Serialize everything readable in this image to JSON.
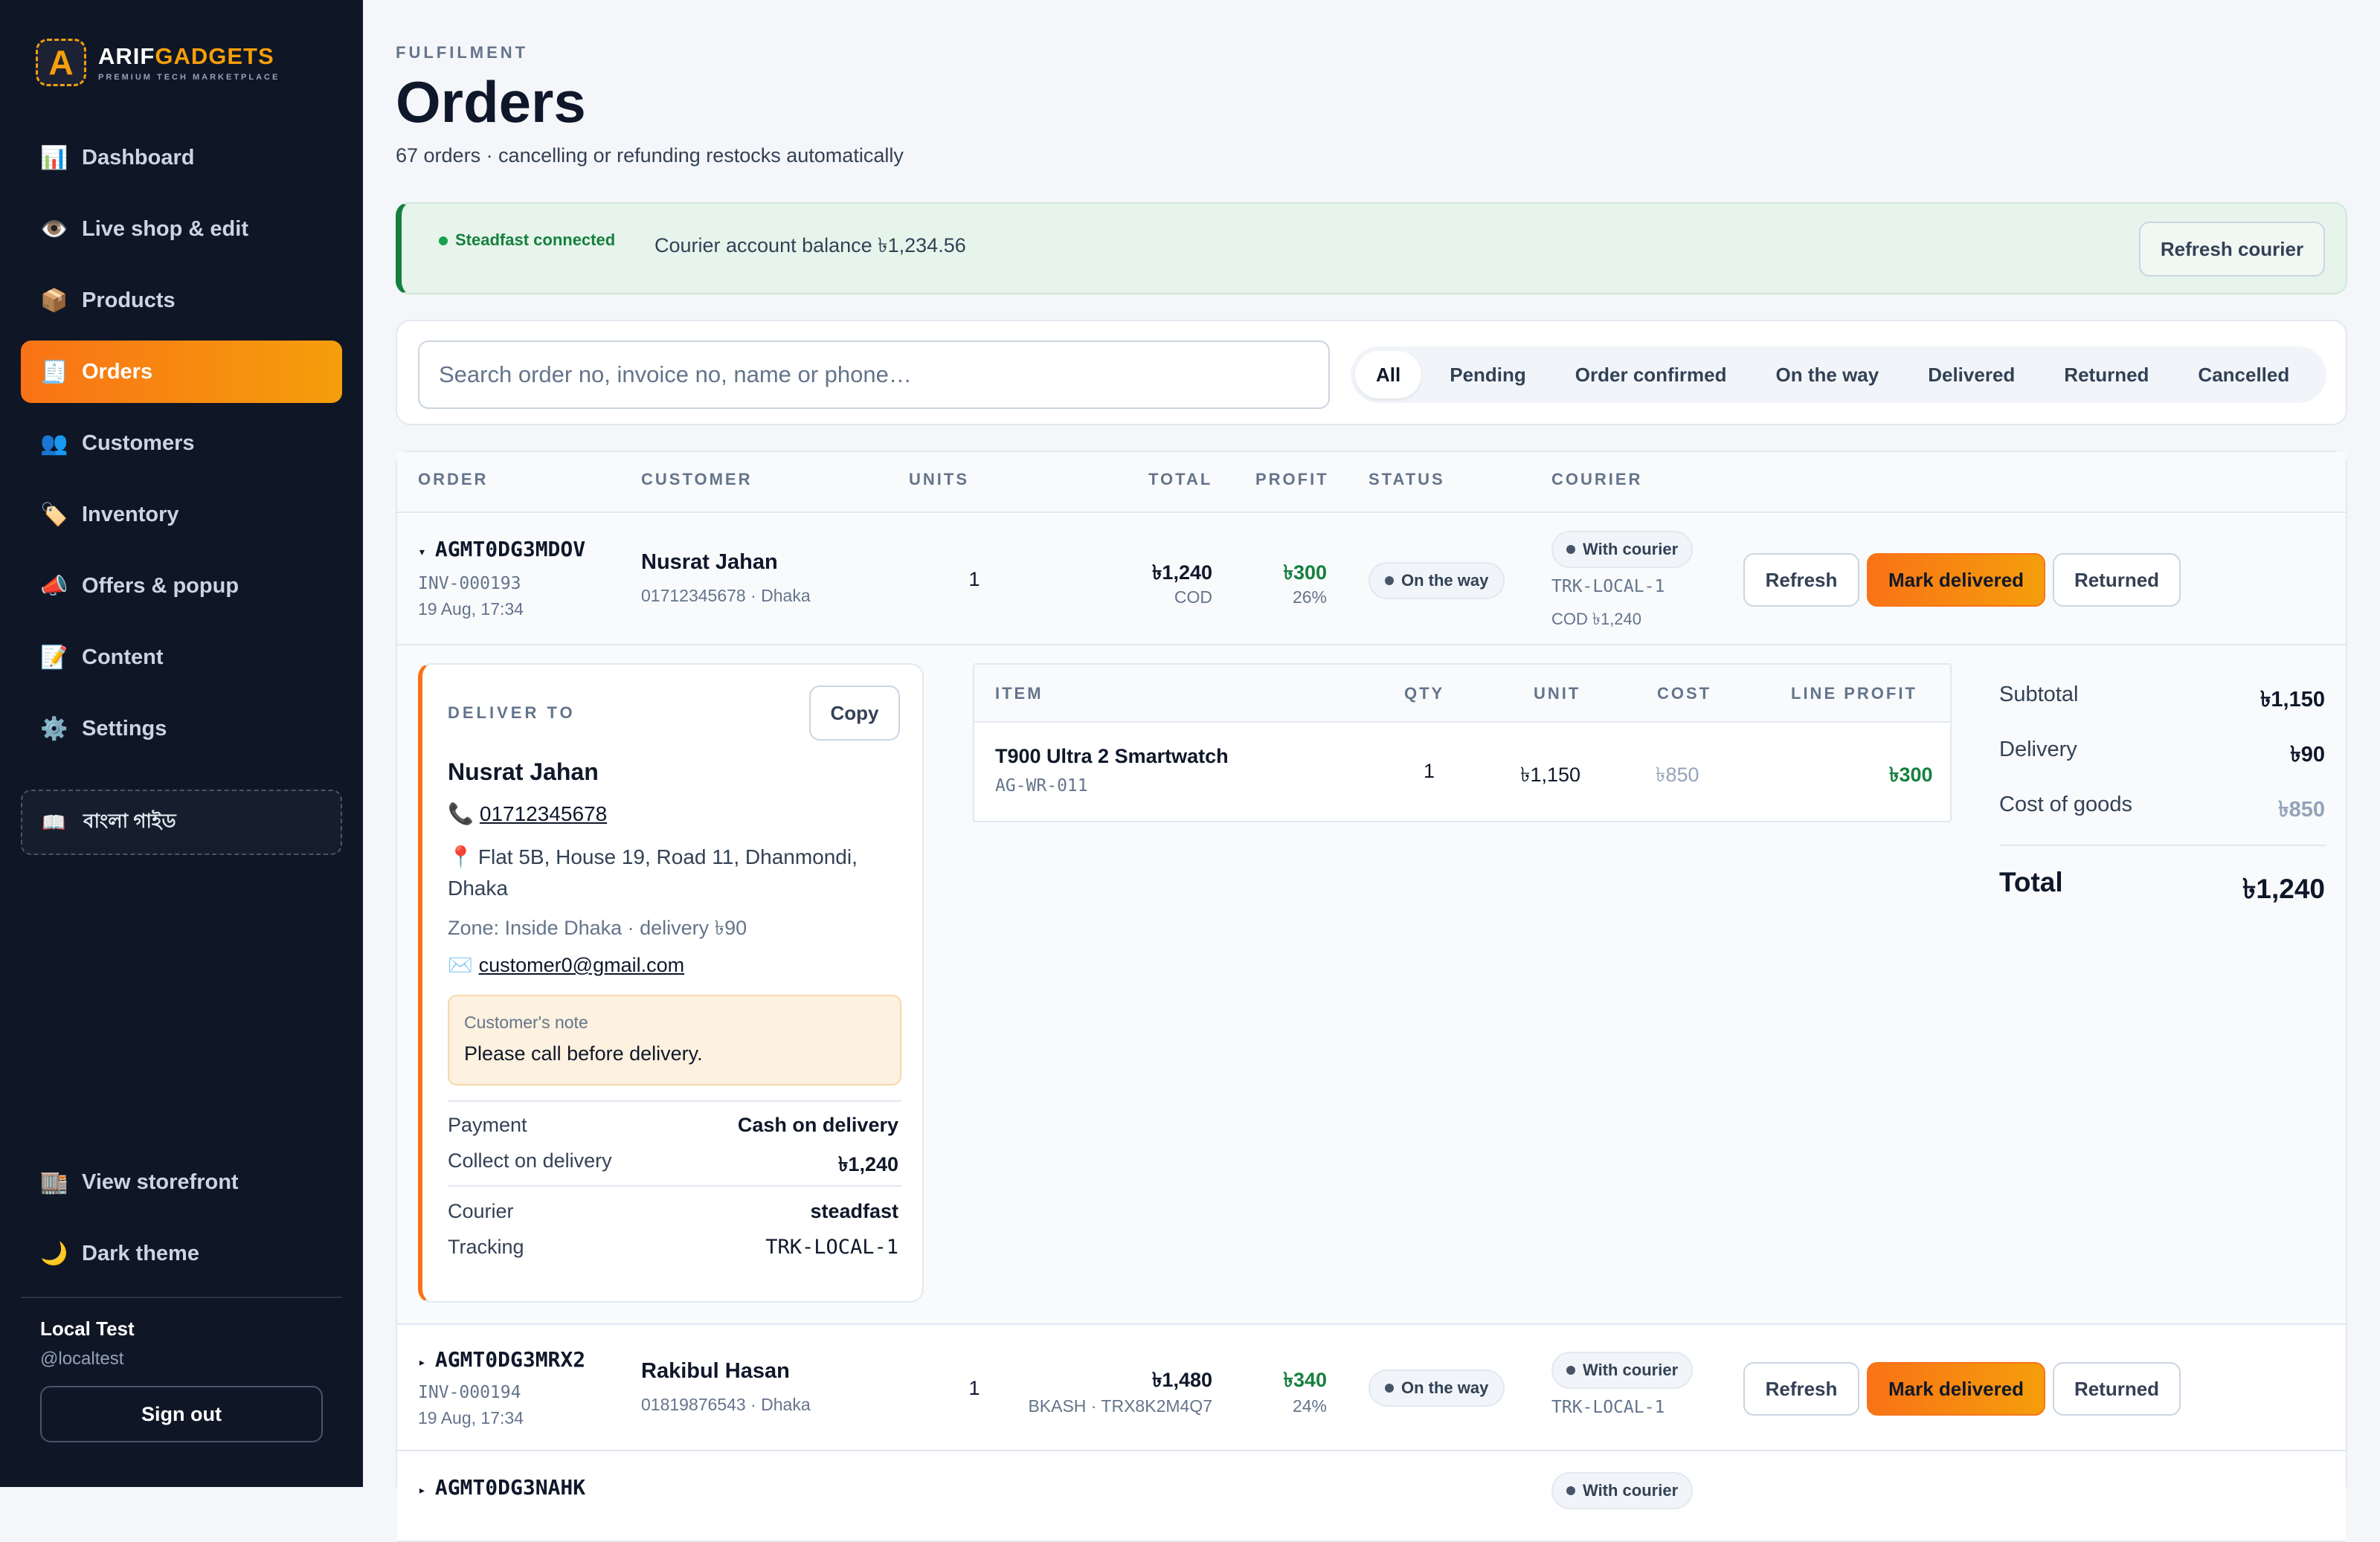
{
  "brand": {
    "name_a": "ARIF",
    "name_b": "GADGETS",
    "tagline": "PREMIUM TECH MARKETPLACE",
    "logo_letter": "A"
  },
  "nav": [
    {
      "icon": "📊",
      "label": "Dashboard"
    },
    {
      "icon": "👁️",
      "label": "Live shop & edit"
    },
    {
      "icon": "📦",
      "label": "Products"
    },
    {
      "icon": "🧾",
      "label": "Orders"
    },
    {
      "icon": "👥",
      "label": "Customers"
    },
    {
      "icon": "🏷️",
      "label": "Inventory"
    },
    {
      "icon": "📣",
      "label": "Offers & popup"
    },
    {
      "icon": "📝",
      "label": "Content"
    },
    {
      "icon": "⚙️",
      "label": "Settings"
    }
  ],
  "guide": {
    "icon": "📖",
    "label": "বাংলা গাইড"
  },
  "side_bottom": [
    {
      "icon": "🏬",
      "label": "View storefront"
    },
    {
      "icon": "🌙",
      "label": "Dark theme"
    }
  ],
  "user": {
    "name": "Local Test",
    "handle": "@localtest",
    "signout": "Sign out"
  },
  "page": {
    "eyebrow": "FULFILMENT",
    "title": "Orders",
    "subtitle": "67 orders · cancelling or refunding restocks automatically"
  },
  "courier": {
    "status": "Steadfast connected",
    "balance": "Courier account balance ৳1,234.56",
    "refresh": "Refresh courier"
  },
  "search": {
    "placeholder": "Search order no, invoice no, name or phone…"
  },
  "tabs": [
    "All",
    "Pending",
    "Order confirmed",
    "On the way",
    "Delivered",
    "Returned",
    "Cancelled"
  ],
  "columns": {
    "order": "ORDER",
    "customer": "CUSTOMER",
    "units": "UNITS",
    "total": "TOTAL",
    "profit": "PROFIT",
    "status": "STATUS",
    "courier": "COURIER"
  },
  "orders": [
    {
      "caret": "▾",
      "id": "AGMT0DG3MDOV",
      "invoice": "INV-000193",
      "date": "19 Aug, 17:34",
      "customer": "Nusrat Jahan",
      "phone_city": "01712345678 · Dhaka",
      "units": "1",
      "total": "৳1,240",
      "payment": "COD",
      "profit": "৳300",
      "margin": "26%",
      "status": "On the way",
      "courier_status": "With courier",
      "tracking": "TRK-LOCAL-1",
      "cod": "COD ৳1,240",
      "btn_refresh": "Refresh",
      "btn_delivered": "Mark delivered",
      "btn_returned": "Returned"
    },
    {
      "caret": "▸",
      "id": "AGMT0DG3MRX2",
      "invoice": "INV-000194",
      "date": "19 Aug, 17:34",
      "customer": "Rakibul Hasan",
      "phone_city": "01819876543 · Dhaka",
      "units": "1",
      "total": "৳1,480",
      "payment": "BKASH · TRX8K2M4Q7",
      "profit": "৳340",
      "margin": "24%",
      "status": "On the way",
      "courier_status": "With courier",
      "tracking": "TRK-LOCAL-1",
      "btn_refresh": "Refresh",
      "btn_delivered": "Mark delivered",
      "btn_returned": "Returned"
    },
    {
      "caret": "▸",
      "id": "AGMT0DG3NAHK",
      "courier_status": "With courier"
    }
  ],
  "detail": {
    "deliver_label": "DELIVER TO",
    "copy": "Copy",
    "name": "Nusrat Jahan",
    "phone": "01712345678",
    "address": "Flat 5B, House 19, Road 11, Dhanmondi, Dhaka",
    "zone": "Zone: Inside Dhaka · delivery ৳90",
    "email": "customer0@gmail.com",
    "note_label": "Customer's note",
    "note": "Please call before delivery.",
    "payment_k": "Payment",
    "payment_v": "Cash on delivery",
    "collect_k": "Collect on delivery",
    "collect_v": "৳1,240",
    "courier_k": "Courier",
    "courier_v": "steadfast",
    "tracking_k": "Tracking",
    "tracking_v": "TRK-LOCAL-1",
    "items_cols": {
      "item": "ITEM",
      "qty": "QTY",
      "unit": "UNIT",
      "cost": "COST",
      "line_profit": "LINE PROFIT"
    },
    "items": [
      {
        "name": "T900 Ultra 2 Smartwatch",
        "sku": "AG-WR-011",
        "qty": "1",
        "unit": "৳1,150",
        "cost": "৳850",
        "line_profit": "৳300"
      }
    ],
    "summary": {
      "subtotal_k": "Subtotal",
      "subtotal_v": "৳1,150",
      "delivery_k": "Delivery",
      "delivery_v": "৳90",
      "cogs_k": "Cost of goods",
      "cogs_v": "৳850",
      "total_k": "Total",
      "total_v": "৳1,240"
    }
  },
  "colors": {
    "accent": "#f97316",
    "accent2": "#f59e0b",
    "sidebar": "#0f1626",
    "success": "#15803d"
  }
}
